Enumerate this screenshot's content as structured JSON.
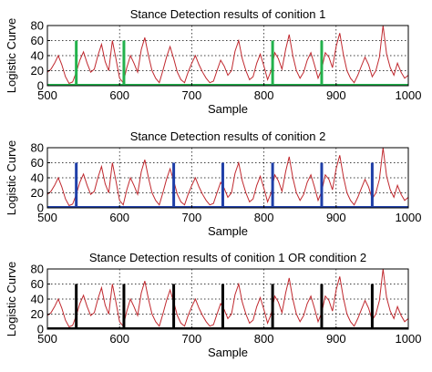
{
  "chart_data": [
    {
      "type": "line",
      "title": "Stance Detection results of conition 1",
      "ylabel": "Logistic Curve",
      "xlabel": "Sample",
      "xlim": [
        500,
        1000
      ],
      "ylim": [
        0,
        80
      ],
      "xticks": [
        500,
        600,
        700,
        800,
        900,
        1000
      ],
      "yticks": [
        0,
        20,
        40,
        60,
        80
      ],
      "grid": true,
      "series": [
        {
          "color": "#c0282e",
          "x": [
            500,
            505,
            510,
            515,
            520,
            525,
            530,
            535,
            540,
            545,
            550,
            555,
            560,
            565,
            570,
            575,
            580,
            585,
            590,
            595,
            600,
            605,
            610,
            615,
            620,
            625,
            630,
            635,
            640,
            645,
            650,
            655,
            660,
            665,
            670,
            675,
            680,
            685,
            690,
            695,
            700,
            705,
            710,
            715,
            720,
            725,
            730,
            735,
            740,
            745,
            750,
            755,
            760,
            765,
            770,
            775,
            780,
            785,
            790,
            795,
            800,
            805,
            810,
            815,
            820,
            825,
            830,
            835,
            840,
            845,
            850,
            855,
            860,
            865,
            870,
            875,
            880,
            885,
            890,
            895,
            900,
            905,
            910,
            915,
            920,
            925,
            930,
            935,
            940,
            945,
            950,
            955,
            960,
            965,
            970,
            975,
            980,
            985,
            990,
            995,
            1000
          ],
          "y": [
            18,
            22,
            30,
            40,
            28,
            12,
            3,
            5,
            18,
            34,
            45,
            30,
            18,
            22,
            40,
            55,
            32,
            20,
            60,
            36,
            10,
            4,
            24,
            40,
            30,
            18,
            48,
            64,
            40,
            20,
            10,
            4,
            20,
            38,
            52,
            36,
            18,
            8,
            4,
            18,
            30,
            40,
            28,
            18,
            10,
            4,
            6,
            20,
            34,
            26,
            14,
            20,
            46,
            60,
            36,
            20,
            8,
            12,
            30,
            42,
            26,
            8,
            20,
            44,
            36,
            22,
            48,
            68,
            40,
            20,
            10,
            18,
            34,
            44,
            28,
            10,
            22,
            44,
            38,
            24,
            52,
            70,
            42,
            20,
            10,
            4,
            14,
            26,
            38,
            28,
            12,
            20,
            38,
            80,
            42,
            24,
            14,
            30,
            18,
            10,
            14
          ]
        },
        {
          "color": "#22b24c",
          "marker_x": [
            540,
            606,
            812,
            880
          ]
        }
      ]
    },
    {
      "type": "line",
      "title": "Stance Detection results of conition 2",
      "ylabel": "Logistic Curve",
      "xlabel": "Sample",
      "xlim": [
        500,
        1000
      ],
      "ylim": [
        0,
        80
      ],
      "xticks": [
        500,
        600,
        700,
        800,
        900,
        1000
      ],
      "yticks": [
        0,
        20,
        40,
        60,
        80
      ],
      "grid": true,
      "series": [
        {
          "color": "#c0282e",
          "x": [
            500,
            505,
            510,
            515,
            520,
            525,
            530,
            535,
            540,
            545,
            550,
            555,
            560,
            565,
            570,
            575,
            580,
            585,
            590,
            595,
            600,
            605,
            610,
            615,
            620,
            625,
            630,
            635,
            640,
            645,
            650,
            655,
            660,
            665,
            670,
            675,
            680,
            685,
            690,
            695,
            700,
            705,
            710,
            715,
            720,
            725,
            730,
            735,
            740,
            745,
            750,
            755,
            760,
            765,
            770,
            775,
            780,
            785,
            790,
            795,
            800,
            805,
            810,
            815,
            820,
            825,
            830,
            835,
            840,
            845,
            850,
            855,
            860,
            865,
            870,
            875,
            880,
            885,
            890,
            895,
            900,
            905,
            910,
            915,
            920,
            925,
            930,
            935,
            940,
            945,
            950,
            955,
            960,
            965,
            970,
            975,
            980,
            985,
            990,
            995,
            1000
          ],
          "y": [
            18,
            22,
            30,
            40,
            28,
            12,
            3,
            5,
            18,
            34,
            45,
            30,
            18,
            22,
            40,
            55,
            32,
            20,
            60,
            36,
            10,
            4,
            24,
            40,
            30,
            18,
            48,
            64,
            40,
            20,
            10,
            4,
            20,
            38,
            52,
            36,
            18,
            8,
            4,
            18,
            30,
            40,
            28,
            18,
            10,
            4,
            6,
            20,
            34,
            26,
            14,
            20,
            46,
            60,
            36,
            20,
            8,
            12,
            30,
            42,
            26,
            8,
            20,
            44,
            36,
            22,
            48,
            68,
            40,
            20,
            10,
            18,
            34,
            44,
            28,
            10,
            22,
            44,
            38,
            24,
            52,
            70,
            42,
            20,
            10,
            4,
            14,
            26,
            38,
            28,
            12,
            20,
            38,
            80,
            42,
            24,
            14,
            30,
            18,
            10,
            14
          ]
        },
        {
          "color": "#1f3fa8",
          "marker_x": [
            540,
            675,
            743,
            812,
            880,
            950
          ]
        }
      ]
    },
    {
      "type": "line",
      "title": "Stance Detection results of conition 1 OR condition 2",
      "ylabel": "Logistic Curve",
      "xlabel": "Sample",
      "xlim": [
        500,
        1000
      ],
      "ylim": [
        0,
        80
      ],
      "xticks": [
        500,
        600,
        700,
        800,
        900,
        1000
      ],
      "yticks": [
        0,
        20,
        40,
        60,
        80
      ],
      "grid": true,
      "series": [
        {
          "color": "#c0282e",
          "x": [
            500,
            505,
            510,
            515,
            520,
            525,
            530,
            535,
            540,
            545,
            550,
            555,
            560,
            565,
            570,
            575,
            580,
            585,
            590,
            595,
            600,
            605,
            610,
            615,
            620,
            625,
            630,
            635,
            640,
            645,
            650,
            655,
            660,
            665,
            670,
            675,
            680,
            685,
            690,
            695,
            700,
            705,
            710,
            715,
            720,
            725,
            730,
            735,
            740,
            745,
            750,
            755,
            760,
            765,
            770,
            775,
            780,
            785,
            790,
            795,
            800,
            805,
            810,
            815,
            820,
            825,
            830,
            835,
            840,
            845,
            850,
            855,
            860,
            865,
            870,
            875,
            880,
            885,
            890,
            895,
            900,
            905,
            910,
            915,
            920,
            925,
            930,
            935,
            940,
            945,
            950,
            955,
            960,
            965,
            970,
            975,
            980,
            985,
            990,
            995,
            1000
          ],
          "y": [
            18,
            22,
            30,
            40,
            28,
            12,
            3,
            5,
            18,
            34,
            45,
            30,
            18,
            22,
            40,
            55,
            32,
            20,
            60,
            36,
            10,
            4,
            24,
            40,
            30,
            18,
            48,
            64,
            40,
            20,
            10,
            4,
            20,
            38,
            52,
            36,
            18,
            8,
            4,
            18,
            30,
            40,
            28,
            18,
            10,
            4,
            6,
            20,
            34,
            26,
            14,
            20,
            46,
            60,
            36,
            20,
            8,
            12,
            30,
            42,
            26,
            8,
            20,
            44,
            36,
            22,
            48,
            68,
            40,
            20,
            10,
            18,
            34,
            44,
            28,
            10,
            22,
            44,
            38,
            24,
            52,
            70,
            42,
            20,
            10,
            4,
            14,
            26,
            38,
            28,
            12,
            20,
            38,
            80,
            42,
            24,
            14,
            30,
            18,
            10,
            14
          ]
        },
        {
          "color": "#000000",
          "marker_x": [
            540,
            606,
            675,
            743,
            812,
            880,
            950
          ]
        }
      ]
    }
  ]
}
